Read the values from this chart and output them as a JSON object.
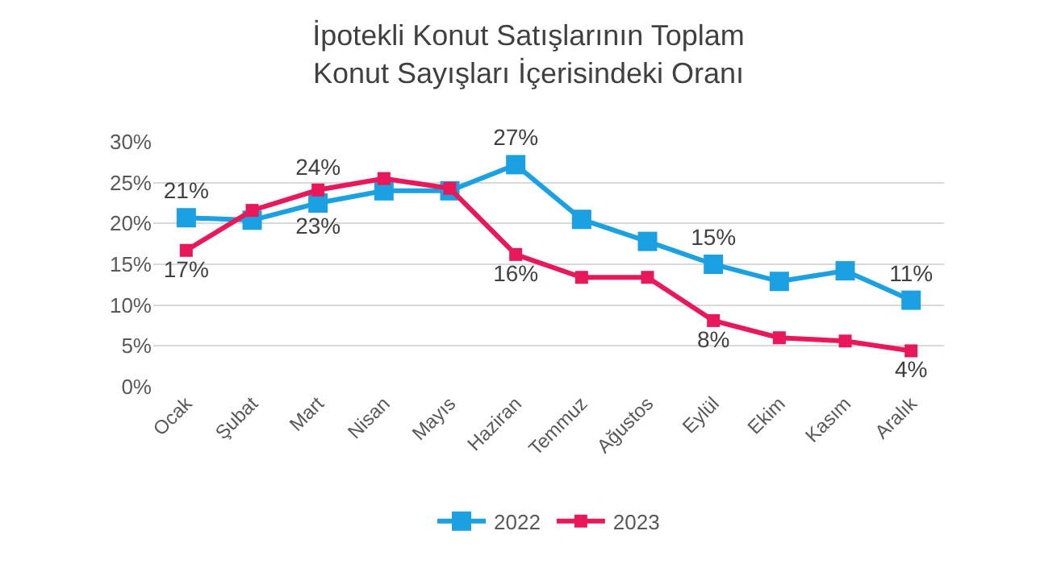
{
  "chart_data": {
    "type": "line",
    "title": "İpotekli Konut Satışlarının Toplam Konut Sayışları İçerisindeki Oranı",
    "categories": [
      "Ocak",
      "Şubat",
      "Mart",
      "Nisan",
      "Mayıs",
      "Haziran",
      "Temmuz",
      "Ağustos",
      "Eylül",
      "Ekim",
      "Kasım",
      "Aralık"
    ],
    "series": [
      {
        "name": "2022",
        "color": "#1ba1e2",
        "values": [
          20.7,
          20.4,
          22.5,
          24,
          24,
          27.2,
          20.5,
          17.8,
          15,
          12.9,
          14.2,
          10.6
        ],
        "value_labels": [
          "21%",
          null,
          "23%",
          null,
          null,
          "27%",
          null,
          null,
          "15%",
          null,
          null,
          "11%"
        ]
      },
      {
        "name": "2023",
        "color": "#e8185a",
        "values": [
          16.7,
          21.6,
          24.1,
          25.5,
          24.3,
          16.2,
          13.4,
          13.4,
          8.1,
          6,
          5.6,
          4.4
        ],
        "value_labels": [
          "17%",
          null,
          "24%",
          null,
          null,
          "16%",
          null,
          null,
          "8%",
          null,
          null,
          "4%"
        ]
      }
    ],
    "ylim": [
      0,
      30
    ],
    "yticks": [
      {
        "value": 0,
        "label": "0%"
      },
      {
        "value": 5,
        "label": "5%"
      },
      {
        "value": 10,
        "label": "10%"
      },
      {
        "value": 15,
        "label": "15%"
      },
      {
        "value": 20,
        "label": "20%"
      },
      {
        "value": 25,
        "label": "25%"
      },
      {
        "value": 30,
        "label": "30%"
      }
    ],
    "grid": "y",
    "legend": "bottom",
    "marker": "square",
    "line_style": "solid"
  }
}
